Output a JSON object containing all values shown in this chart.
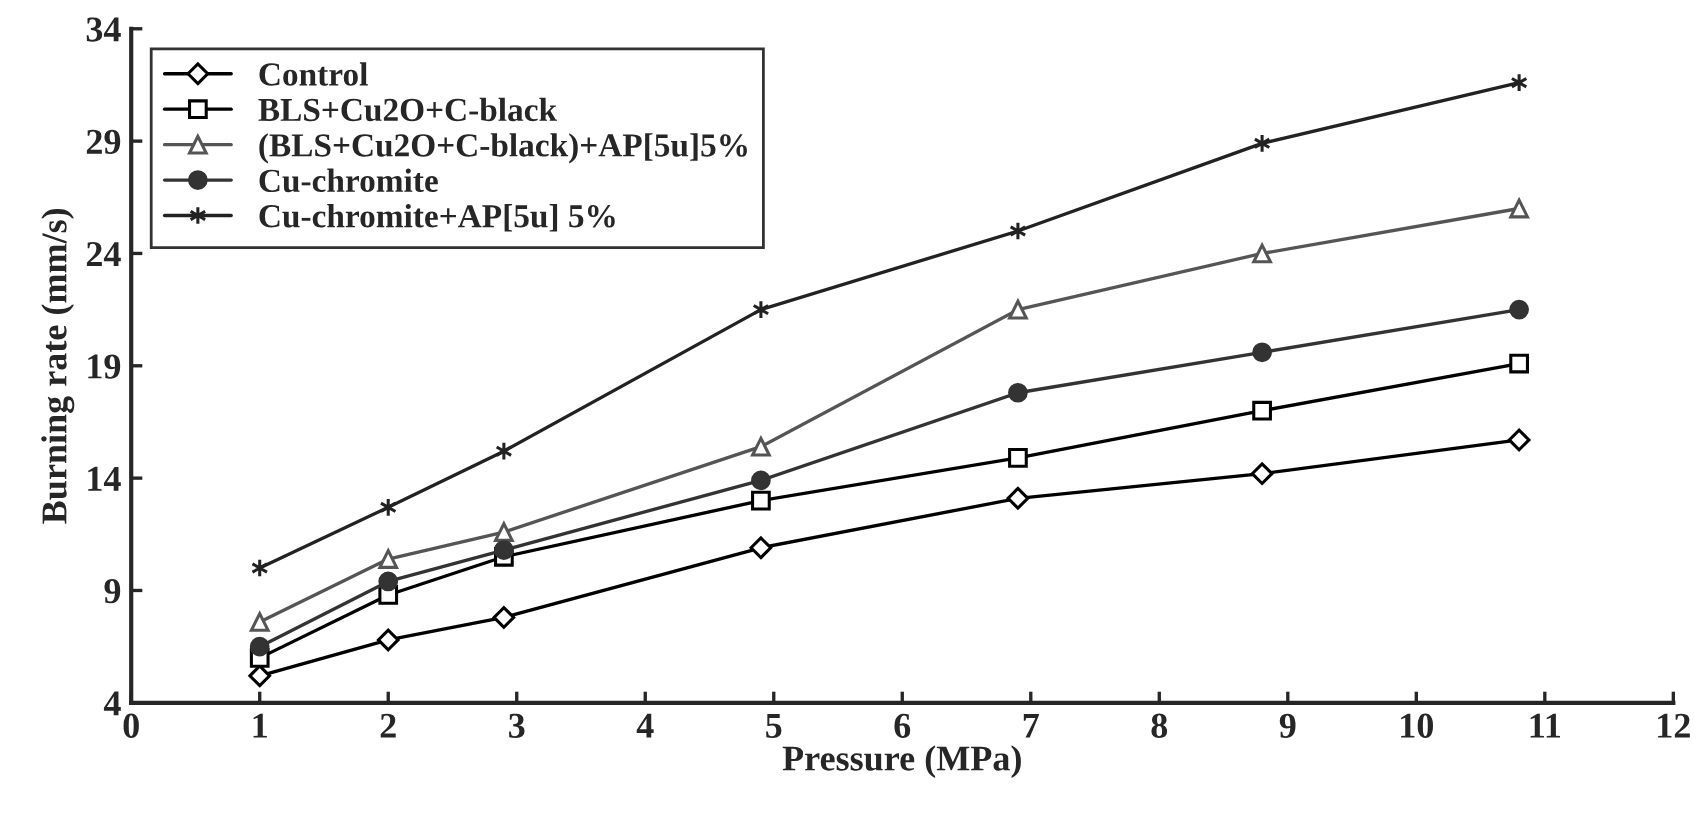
{
  "chart_data": {
    "type": "line",
    "xlabel": "Pressure (MPa)",
    "ylabel": "Burning rate (mm/s)",
    "x": [
      1,
      2,
      2.9,
      4.9,
      6.9,
      8.8,
      10.8
    ],
    "series": [
      {
        "name": "Control",
        "color": "#000000",
        "marker": "diamond",
        "values": [
          5.2,
          6.8,
          7.8,
          10.9,
          13.1,
          14.2,
          15.7
        ]
      },
      {
        "name": "BLS+Cu2O+C-black",
        "color": "#000000",
        "marker": "square",
        "values": [
          6.0,
          8.8,
          10.5,
          13.0,
          14.9,
          17.0,
          19.1
        ]
      },
      {
        "name": "(BLS+Cu2O+C-black)+AP[5u]5%",
        "color": "#555555",
        "marker": "triangle",
        "values": [
          7.6,
          10.4,
          11.6,
          15.4,
          21.5,
          24.0,
          26.0
        ]
      },
      {
        "name": "Cu-chromite",
        "color": "#333333",
        "marker": "circle",
        "values": [
          6.5,
          9.4,
          10.8,
          13.9,
          17.8,
          19.6,
          21.5
        ]
      },
      {
        "name": "Cu-chromite+AP[5u] 5%",
        "color": "#222222",
        "marker": "cross",
        "values": [
          10.0,
          12.7,
          15.2,
          21.5,
          25.0,
          28.9,
          31.6
        ]
      }
    ],
    "xlim": [
      0,
      12
    ],
    "xticks": [
      0,
      1,
      2,
      3,
      4,
      5,
      6,
      7,
      8,
      9,
      10,
      11,
      12
    ],
    "ylim": [
      4,
      34
    ],
    "yticks": [
      4,
      9,
      14,
      19,
      24,
      29,
      34
    ],
    "grid": false,
    "legend": "top left",
    "line_style": "solid"
  }
}
